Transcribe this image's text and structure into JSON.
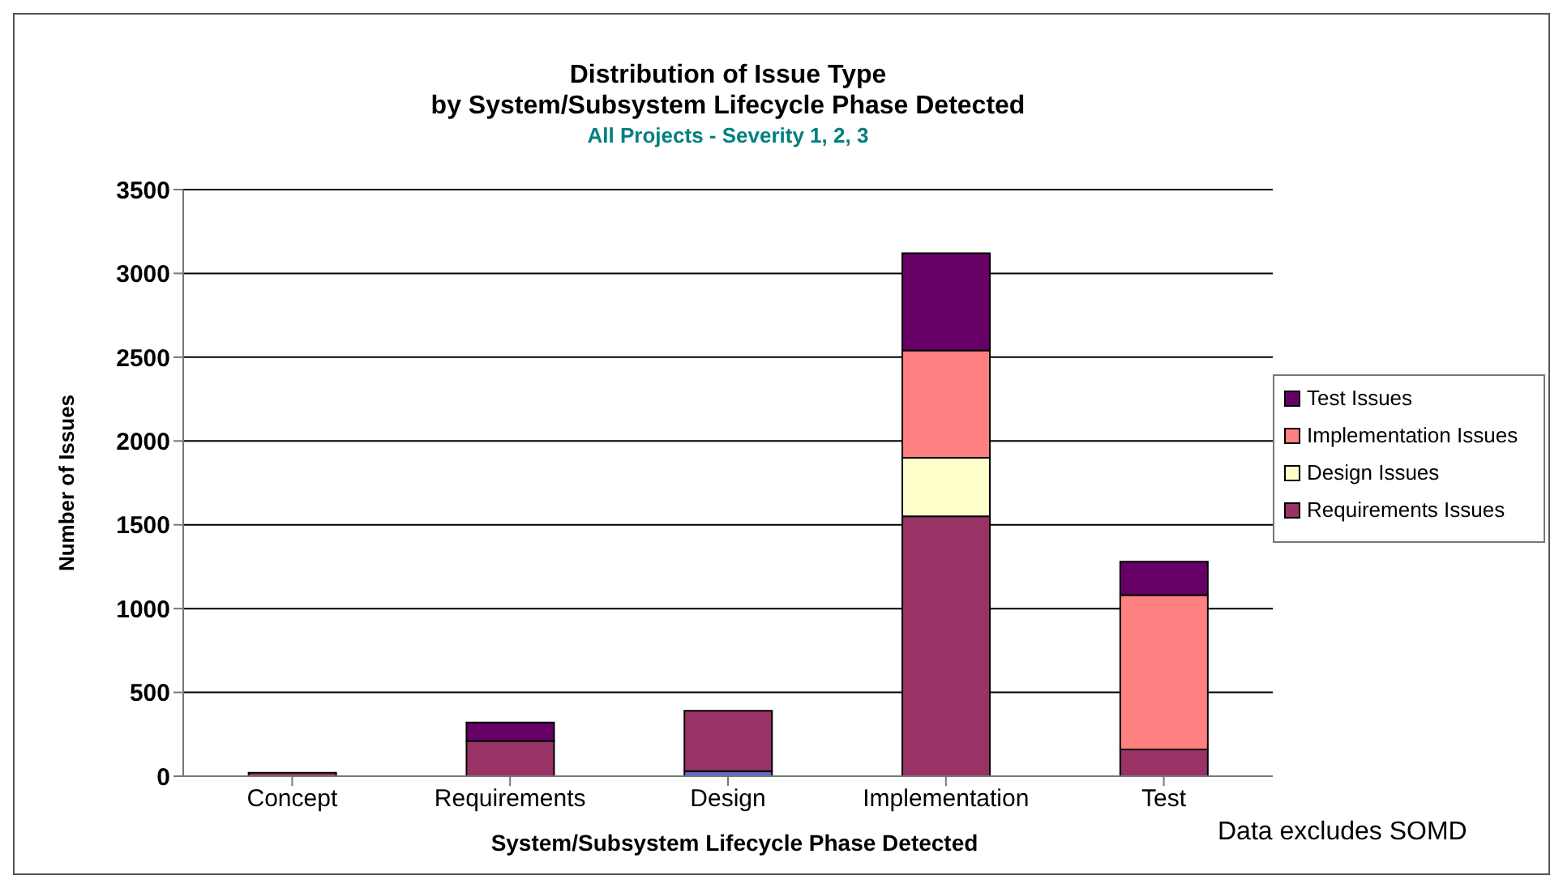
{
  "chart_data": {
    "type": "bar",
    "title": "Distribution of Issue Type\nby System/Subsystem Lifecycle Phase Detected",
    "subtitle": "All Projects - Severity 1, 2, 3",
    "xlabel": "System/Subsystem Lifecycle Phase Detected",
    "ylabel": "Number of Issues",
    "annotations": [
      "Data excludes SOMD"
    ],
    "categories": [
      "Concept",
      "Requirements",
      "Design",
      "Implementation",
      "Test"
    ],
    "stacked": true,
    "series": [
      {
        "color": "#6666cc",
        "values": [
          null,
          null,
          30,
          null,
          null
        ]
      },
      {
        "name": "Requirements Issues",
        "color": "#993366",
        "values": [
          20,
          210,
          360,
          1550,
          160
        ]
      },
      {
        "name": "Design Issues",
        "color": "#ffffcc",
        "values": [
          null,
          null,
          null,
          350,
          null
        ]
      },
      {
        "name": "Implementation Issues",
        "color": "#ff8080",
        "values": [
          null,
          null,
          null,
          640,
          920
        ]
      },
      {
        "name": "Test Issues",
        "color": "#660066",
        "values": [
          null,
          110,
          null,
          580,
          200
        ]
      }
    ],
    "ylim": [
      0,
      3500
    ],
    "yticks": [
      0,
      500,
      1000,
      1500,
      2000,
      2500,
      3000,
      3500
    ],
    "grid": "y",
    "legend": "right"
  }
}
